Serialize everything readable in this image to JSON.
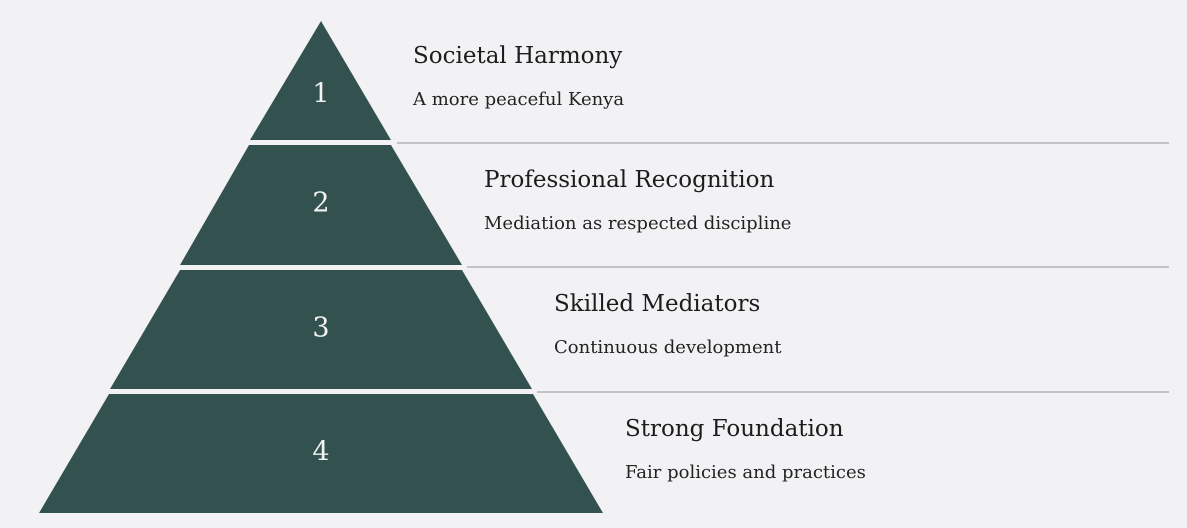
{
  "pyramid": {
    "fill_color": "#33524f",
    "divider_color": "#b3b3b3",
    "background_color": "#f2f2f4",
    "tiers": [
      {
        "number": "1",
        "title": "Societal Harmony",
        "description": "A more peaceful Kenya"
      },
      {
        "number": "2",
        "title": "Professional Recognition",
        "description": "Mediation as respected discipline"
      },
      {
        "number": "3",
        "title": "Skilled Mediators",
        "description": "Continuous development"
      },
      {
        "number": "4",
        "title": "Strong Foundation",
        "description": "Fair policies and practices"
      }
    ]
  }
}
